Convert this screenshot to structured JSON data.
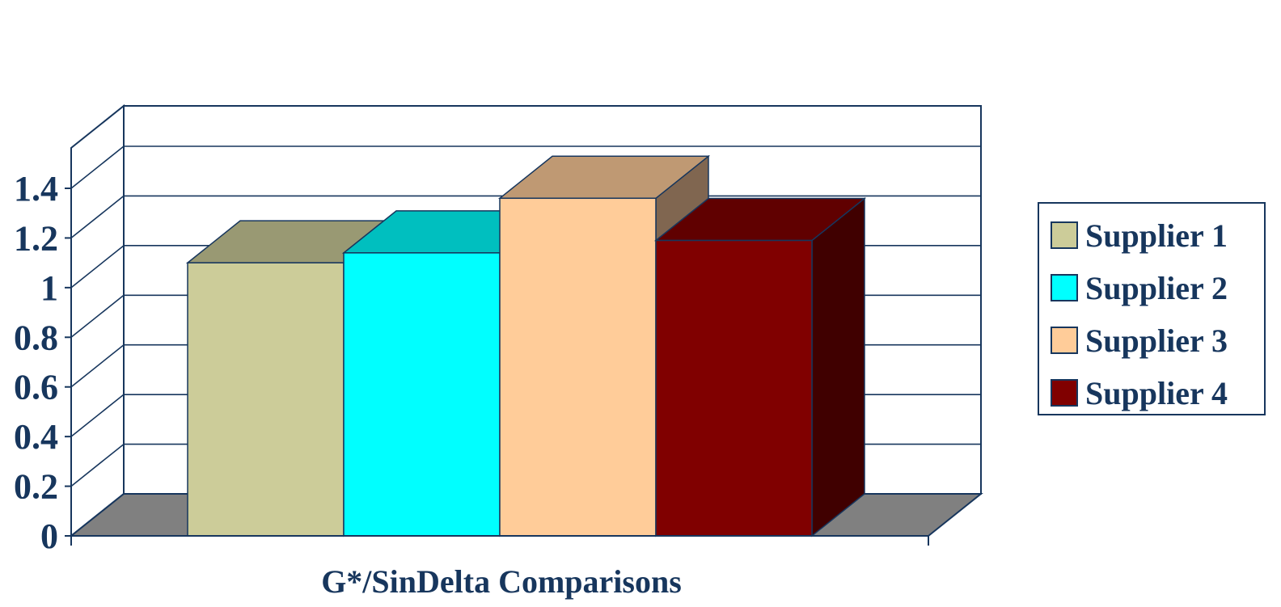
{
  "chart_data": {
    "type": "bar",
    "style": "3d-column",
    "categories": [
      "G*/SinDelta Comparisons"
    ],
    "series": [
      {
        "name": "Supplier 1",
        "values": [
          1.1
        ]
      },
      {
        "name": "Supplier 2",
        "values": [
          1.14
        ]
      },
      {
        "name": "Supplier 3",
        "values": [
          1.36
        ]
      },
      {
        "name": "Supplier 4",
        "values": [
          1.19
        ]
      }
    ],
    "xlabel": "G*/SinDelta Comparisons",
    "ylabel": "",
    "ylim": [
      0,
      1.4
    ],
    "yticks": [
      "0",
      "0.2",
      "0.4",
      "0.6",
      "0.8",
      "1",
      "1.2",
      "1.4"
    ],
    "grid": true,
    "legend": "right",
    "colors": {
      "series": [
        "#cccc99",
        "#00ffff",
        "#ffcc99",
        "#800000"
      ],
      "series_top": [
        "#999973",
        "#00bfbf",
        "#bf9973",
        "#600000"
      ],
      "series_side": [
        "#808060",
        "#008080",
        "#806650",
        "#400000"
      ],
      "floor": "#808080",
      "axis": "#17365d",
      "text": "#17365d"
    }
  }
}
